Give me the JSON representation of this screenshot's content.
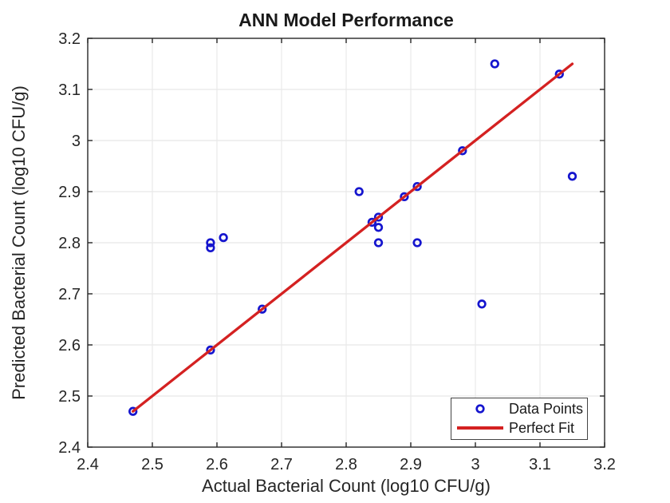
{
  "figure": {
    "background": "#ffffff",
    "axes_color": "#262626",
    "grid_color": "#e8e8e8"
  },
  "chart_data": {
    "type": "scatter",
    "title": "ANN Model Performance",
    "xlabel": "Actual Bacterial Count (log10 CFU/g)",
    "ylabel": "Predicted Bacterial Count (log10 CFU/g)",
    "xlim": [
      2.4,
      3.2
    ],
    "ylim": [
      2.4,
      3.2
    ],
    "xticks": {
      "values": [
        2.4,
        2.5,
        2.6,
        2.7,
        2.8,
        2.9,
        3.0,
        3.1,
        3.2
      ],
      "labels": [
        "2.4",
        "2.5",
        "2.6",
        "2.7",
        "2.8",
        "2.9",
        "3",
        "3.1",
        "3.2"
      ]
    },
    "yticks": {
      "values": [
        2.4,
        2.5,
        2.6,
        2.7,
        2.8,
        2.9,
        3.0,
        3.1,
        3.2
      ],
      "labels": [
        "2.4",
        "2.5",
        "2.6",
        "2.7",
        "2.8",
        "2.9",
        "3",
        "3.1",
        "3.2"
      ]
    },
    "grid": true,
    "legend_position": "bottom-right",
    "series": [
      {
        "name": "Data Points",
        "kind": "scatter",
        "marker": "open-circle",
        "color": "#1515ce",
        "points": [
          [
            2.47,
            2.47
          ],
          [
            2.59,
            2.59
          ],
          [
            2.59,
            2.79
          ],
          [
            2.59,
            2.8
          ],
          [
            2.61,
            2.81
          ],
          [
            2.67,
            2.67
          ],
          [
            2.82,
            2.9
          ],
          [
            2.84,
            2.84
          ],
          [
            2.85,
            2.85
          ],
          [
            2.85,
            2.83
          ],
          [
            2.85,
            2.8
          ],
          [
            2.89,
            2.89
          ],
          [
            2.91,
            2.91
          ],
          [
            2.91,
            2.8
          ],
          [
            2.98,
            2.98
          ],
          [
            3.01,
            2.68
          ],
          [
            3.03,
            3.15
          ],
          [
            3.13,
            3.13
          ],
          [
            3.15,
            2.93
          ]
        ]
      },
      {
        "name": "Perfect Fit",
        "kind": "line",
        "color": "#d42121",
        "points": [
          [
            2.47,
            2.47
          ],
          [
            3.15,
            3.15
          ]
        ]
      }
    ]
  }
}
